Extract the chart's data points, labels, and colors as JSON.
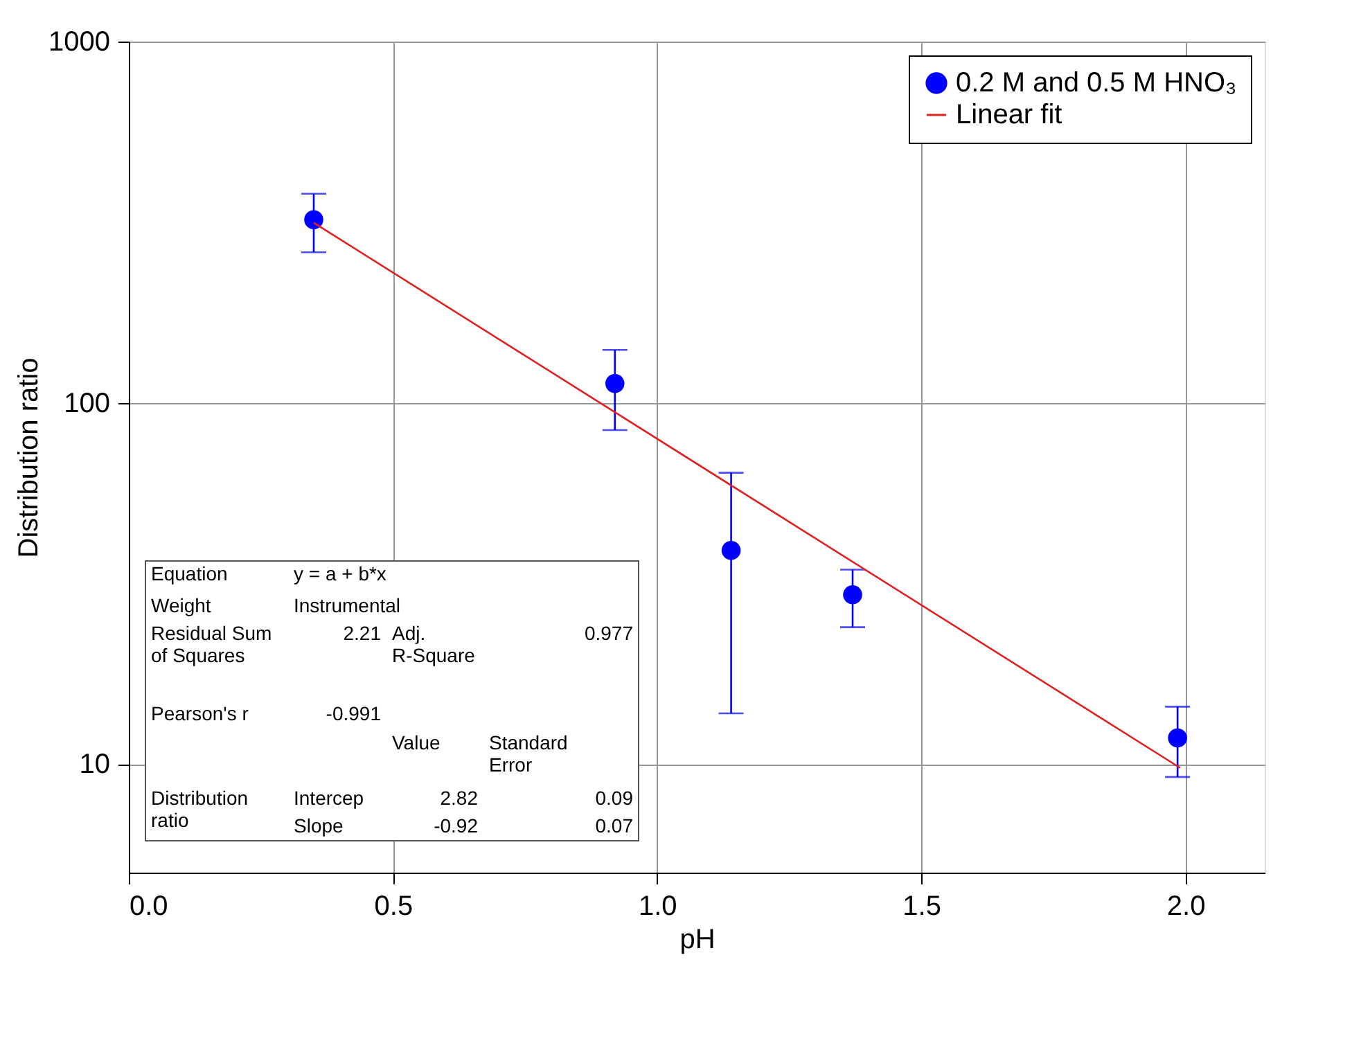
{
  "chart_data": {
    "type": "scatter",
    "xlabel": "pH",
    "ylabel": "Distribution ratio",
    "xlim": [
      0,
      2.15
    ],
    "xticks": [
      {
        "value": 0,
        "label": "0.0"
      },
      {
        "value": 0.5,
        "label": "0.5"
      },
      {
        "value": 1,
        "label": "1.0"
      },
      {
        "value": 1.5,
        "label": "1.5"
      },
      {
        "value": 2,
        "label": "2.0"
      }
    ],
    "ylim": [
      5,
      1000
    ],
    "yticks": [
      10,
      100,
      1000
    ],
    "log": "y",
    "grid": true,
    "legend": "top right",
    "annotations": [
      "Equation",
      "y = a + b*x",
      "Weight",
      "Instrumental",
      "Residual Sum of Squares",
      "2.21",
      "Adj. R-Square",
      "0.977",
      "Pearson's r",
      "-0.991",
      "Value",
      "Standard Error",
      "Distribution ratio",
      "Intercep",
      "2.82",
      "0.09",
      "Slope",
      "-0.92",
      "0.07"
    ],
    "series": [
      {
        "name": "0.2 M and 0.5 M HNO₃",
        "color": "#0000ff",
        "marker": "circle",
        "x": [
          0.35,
          0.92,
          1.14,
          1.37,
          1.985
        ],
        "values": [
          321,
          113,
          39,
          29.4,
          11.8
        ],
        "errors": [
          [
            261,
            379
          ],
          [
            84,
            140
          ],
          [
            13.8,
            64
          ],
          [
            23.9,
            34.5
          ],
          [
            9.2,
            14.4
          ]
        ]
      },
      {
        "name": "Linear fit",
        "type": "line",
        "color": "#e02020",
        "line_style": "solid",
        "x": [
          0.35,
          1.99
        ],
        "values": [
          315,
          9.75
        ]
      }
    ]
  }
}
